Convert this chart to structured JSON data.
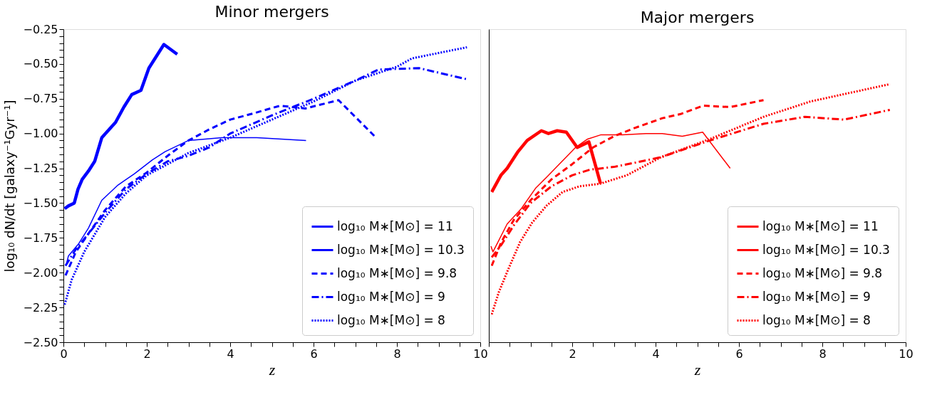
{
  "chart_data": [
    {
      "type": "line",
      "title": "Minor mergers",
      "xlabel": "z",
      "ylabel": "log₁₀ dN/dt [galaxy⁻¹Gyr⁻¹]",
      "xlim": [
        0,
        10
      ],
      "ylim": [
        -2.5,
        -0.25
      ],
      "xticks": [
        0,
        {
          "value": 0.5,
          "label": null
        },
        {
          "value": 1,
          "label": null
        },
        {
          "value": 1.5,
          "label": null
        },
        2,
        {
          "value": 2.5,
          "label": null
        },
        {
          "value": 3,
          "label": null
        },
        {
          "value": 3.5,
          "label": null
        },
        4,
        {
          "value": 4.5,
          "label": null
        },
        {
          "value": 5,
          "label": null
        },
        {
          "value": 5.5,
          "label": null
        },
        6,
        {
          "value": 6.5,
          "label": null
        },
        {
          "value": 7,
          "label": null
        },
        {
          "value": 7.5,
          "label": null
        },
        8,
        {
          "value": 8.5,
          "label": null
        },
        {
          "value": 9,
          "label": null
        },
        {
          "value": 9.5,
          "label": null
        },
        10
      ],
      "yticks": [
        {
          "value": -2.5,
          "label": "−2.50"
        },
        {
          "value": -2.45,
          "label": null
        },
        {
          "value": -2.4,
          "label": null
        },
        {
          "value": -2.35,
          "label": null
        },
        {
          "value": -2.3,
          "label": null
        },
        {
          "value": -2.25,
          "label": "−2.25"
        },
        {
          "value": -2.2,
          "label": null
        },
        {
          "value": -2.15,
          "label": null
        },
        {
          "value": -2.1,
          "label": null
        },
        {
          "value": -2.05,
          "label": null
        },
        {
          "value": -2.0,
          "label": "−2.00"
        },
        {
          "value": -1.95,
          "label": null
        },
        {
          "value": -1.9,
          "label": null
        },
        {
          "value": -1.85,
          "label": null
        },
        {
          "value": -1.8,
          "label": null
        },
        {
          "value": -1.75,
          "label": "−1.75"
        },
        {
          "value": -1.7,
          "label": null
        },
        {
          "value": -1.65,
          "label": null
        },
        {
          "value": -1.6,
          "label": null
        },
        {
          "value": -1.55,
          "label": null
        },
        {
          "value": -1.5,
          "label": "−1.50"
        },
        {
          "value": -1.45,
          "label": null
        },
        {
          "value": -1.4,
          "label": null
        },
        {
          "value": -1.35,
          "label": null
        },
        {
          "value": -1.3,
          "label": null
        },
        {
          "value": -1.25,
          "label": "−1.25"
        },
        {
          "value": -1.2,
          "label": null
        },
        {
          "value": -1.15,
          "label": null
        },
        {
          "value": -1.1,
          "label": null
        },
        {
          "value": -1.05,
          "label": null
        },
        {
          "value": -1.0,
          "label": "−1.00"
        },
        {
          "value": -0.95,
          "label": null
        },
        {
          "value": -0.9,
          "label": null
        },
        {
          "value": -0.85,
          "label": null
        },
        {
          "value": -0.8,
          "label": null
        },
        {
          "value": -0.75,
          "label": "−0.75"
        },
        {
          "value": -0.7,
          "label": null
        },
        {
          "value": -0.65,
          "label": null
        },
        {
          "value": -0.6,
          "label": null
        },
        {
          "value": -0.55,
          "label": null
        },
        {
          "value": -0.5,
          "label": "−0.50"
        },
        {
          "value": -0.45,
          "label": null
        },
        {
          "value": -0.4,
          "label": null
        },
        {
          "value": -0.35,
          "label": null
        },
        {
          "value": -0.3,
          "label": null
        },
        {
          "value": -0.25,
          "label": "−0.25"
        }
      ],
      "grid": false,
      "legend": "bottom right",
      "series": [
        {
          "name": "log₁₀ M∗[M⊙] = 11",
          "color": "#0000ff",
          "line_style": "solid",
          "x": [
            0.03,
            0.12,
            0.26,
            0.35,
            0.45,
            0.6,
            0.75,
            0.92,
            1.1,
            1.25,
            1.45,
            1.64,
            1.86,
            2.05,
            2.41,
            2.73
          ],
          "values": [
            -1.54,
            -1.52,
            -1.5,
            -1.4,
            -1.33,
            -1.27,
            -1.2,
            -1.03,
            -0.97,
            -0.92,
            -0.81,
            -0.72,
            -0.69,
            -0.53,
            -0.36,
            -0.43
          ]
        },
        {
          "name": "log₁₀ M∗[M⊙] = 10.3",
          "color": "#0000ff",
          "line_style": "solid",
          "x": [
            0.07,
            0.12,
            0.37,
            0.6,
            0.92,
            1.31,
            1.7,
            2.13,
            2.44,
            3.0,
            3.8,
            4.64,
            5.82
          ],
          "values": [
            -1.94,
            -1.88,
            -1.79,
            -1.68,
            -1.48,
            -1.37,
            -1.29,
            -1.19,
            -1.13,
            -1.05,
            -1.03,
            -1.03,
            -1.05
          ]
        },
        {
          "name": "log₁₀ M∗[M⊙] = 9.8",
          "color": "#0000ff",
          "line_style": "dashed",
          "x": [
            0.05,
            0.3,
            0.6,
            1.0,
            1.5,
            2.0,
            2.5,
            3.0,
            3.5,
            4.0,
            4.5,
            5.2,
            5.8,
            6.6,
            7.5
          ],
          "values": [
            -2.02,
            -1.85,
            -1.72,
            -1.55,
            -1.38,
            -1.28,
            -1.16,
            -1.05,
            -0.97,
            -0.9,
            -0.86,
            -0.8,
            -0.82,
            -0.76,
            -1.03
          ]
        },
        {
          "name": "log₁₀ M∗[M⊙] = 9",
          "color": "#0000ff",
          "line_style": "dashdot",
          "x": [
            0.05,
            0.3,
            0.6,
            1.0,
            1.5,
            2.0,
            2.5,
            3.0,
            3.5,
            4.0,
            5.0,
            6.0,
            7.0,
            7.56,
            8.53,
            9.68
          ],
          "values": [
            -1.95,
            -1.83,
            -1.72,
            -1.57,
            -1.4,
            -1.29,
            -1.2,
            -1.16,
            -1.1,
            -1.0,
            -0.87,
            -0.75,
            -0.62,
            -0.54,
            -0.53,
            -0.61
          ]
        },
        {
          "name": "log₁₀ M∗[M⊙] = 8",
          "color": "#0000ff",
          "line_style": "dotted",
          "x": [
            0.03,
            0.2,
            0.5,
            1.0,
            1.5,
            2.0,
            2.5,
            3.0,
            4.0,
            5.0,
            6.0,
            7.0,
            8.0,
            8.36,
            9.68
          ],
          "values": [
            -2.23,
            -2.05,
            -1.85,
            -1.6,
            -1.43,
            -1.3,
            -1.22,
            -1.14,
            -1.03,
            -0.9,
            -0.77,
            -0.62,
            -0.52,
            -0.46,
            -0.38
          ]
        }
      ]
    },
    {
      "type": "line",
      "title": "Major mergers",
      "xlabel": "z",
      "xlim": [
        0,
        10
      ],
      "ylim": [
        -2.5,
        -0.25
      ],
      "tick_labels": "x",
      "xticks": [
        {
          "value": 0,
          "label": null
        },
        {
          "value": 0.5,
          "label": null
        },
        {
          "value": 1,
          "label": null
        },
        {
          "value": 1.5,
          "label": null
        },
        2,
        {
          "value": 2.5,
          "label": null
        },
        {
          "value": 3,
          "label": null
        },
        {
          "value": 3.5,
          "label": null
        },
        4,
        {
          "value": 4.5,
          "label": null
        },
        {
          "value": 5,
          "label": null
        },
        {
          "value": 5.5,
          "label": null
        },
        6,
        {
          "value": 6.5,
          "label": null
        },
        {
          "value": 7,
          "label": null
        },
        {
          "value": 7.5,
          "label": null
        },
        8,
        {
          "value": 8.5,
          "label": null
        },
        {
          "value": 9,
          "label": null
        },
        {
          "value": 9.5,
          "label": null
        },
        10
      ],
      "grid": false,
      "legend": "bottom right",
      "series": [
        {
          "name": "log₁₀ M∗[M⊙] = 11",
          "color": "#ff0000",
          "line_style": "solid",
          "x": [
            0.07,
            0.29,
            0.44,
            0.7,
            0.92,
            1.26,
            1.43,
            1.64,
            1.86,
            2.12,
            2.4,
            2.68
          ],
          "values": [
            -1.42,
            -1.3,
            -1.25,
            -1.13,
            -1.05,
            -0.98,
            -1.0,
            -0.98,
            -0.99,
            -1.1,
            -1.06,
            -1.36
          ]
        },
        {
          "name": "log₁₀ M∗[M⊙] = 10.3",
          "color": "#ff0000",
          "line_style": "solid",
          "x": [
            0.05,
            0.1,
            0.22,
            0.44,
            0.78,
            1.13,
            1.4,
            2.08,
            2.37,
            2.68,
            3.2,
            3.77,
            4.16,
            4.64,
            5.13,
            5.79
          ],
          "values": [
            -1.81,
            -1.85,
            -1.78,
            -1.65,
            -1.54,
            -1.39,
            -1.31,
            -1.1,
            -1.04,
            -1.01,
            -1.01,
            -1.0,
            -1.0,
            -1.02,
            -0.99,
            -1.25
          ]
        },
        {
          "name": "log₁₀ M∗[M⊙] = 9.8",
          "color": "#ff0000",
          "line_style": "dashed",
          "x": [
            0.07,
            0.3,
            0.6,
            1.0,
            1.5,
            2.0,
            2.5,
            3.0,
            3.5,
            4.16,
            4.6,
            5.14,
            5.79,
            6.59
          ],
          "values": [
            -1.95,
            -1.78,
            -1.62,
            -1.48,
            -1.33,
            -1.22,
            -1.1,
            -1.02,
            -0.96,
            -0.89,
            -0.86,
            -0.8,
            -0.81,
            -0.76
          ]
        },
        {
          "name": "log₁₀ M∗[M⊙] = 9",
          "color": "#ff0000",
          "line_style": "dashdot",
          "x": [
            0.07,
            0.3,
            0.6,
            1.0,
            1.5,
            2.0,
            2.42,
            3.0,
            3.5,
            4.13,
            5.3,
            6.59,
            7.58,
            8.52,
            9.62
          ],
          "values": [
            -1.89,
            -1.8,
            -1.66,
            -1.5,
            -1.38,
            -1.3,
            -1.26,
            -1.24,
            -1.21,
            -1.17,
            -1.05,
            -0.93,
            -0.88,
            -0.9,
            -0.83
          ]
        },
        {
          "name": "log₁₀ M∗[M⊙] = 8",
          "color": "#ff0000",
          "line_style": "dotted",
          "x": [
            0.07,
            0.24,
            0.46,
            0.75,
            1.04,
            1.38,
            1.77,
            2.17,
            2.68,
            3.31,
            4.13,
            5.3,
            6.59,
            7.71,
            9.62
          ],
          "values": [
            -2.3,
            -2.14,
            -1.98,
            -1.78,
            -1.64,
            -1.52,
            -1.42,
            -1.38,
            -1.36,
            -1.3,
            -1.17,
            -1.04,
            -0.88,
            -0.77,
            -0.645
          ]
        }
      ]
    }
  ]
}
